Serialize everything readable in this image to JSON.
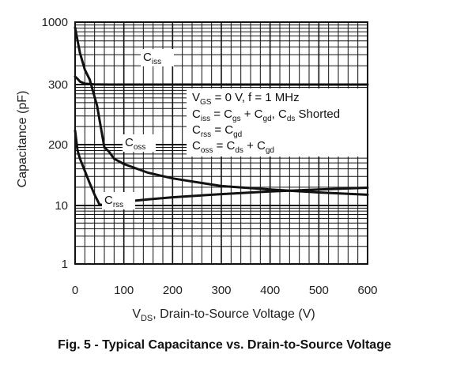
{
  "chart_data": {
    "type": "line",
    "caption": "Fig. 5 - Typical Capacitance vs. Drain-to-Source Voltage",
    "xlabel": {
      "main": "V",
      "sub": "DS",
      "rest": ", Drain-to-Source Voltage (V)"
    },
    "ylabel": "Capacitance (pF)",
    "x_ticks": [
      "0",
      "100",
      "200",
      "300",
      "400",
      "500",
      "600"
    ],
    "y_ticks": [
      "1",
      "10",
      "200",
      "300",
      "1000"
    ],
    "xlim": [
      0,
      600
    ],
    "grid": true,
    "series": [
      {
        "name": "Ciss",
        "label": {
          "main": "C",
          "sub": "iss"
        },
        "x": [
          0,
          5,
          10,
          20,
          40,
          70,
          100,
          200,
          300,
          400,
          500,
          600
        ],
        "y": [
          350,
          335,
          318,
          305,
          301,
          300,
          300,
          300,
          300,
          300,
          300,
          300
        ]
      },
      {
        "name": "Coss",
        "label": {
          "main": "C",
          "sub": "oss"
        },
        "x": [
          0,
          5,
          10,
          20,
          30,
          45,
          60,
          70,
          80,
          100,
          150,
          200,
          300,
          400,
          500,
          600
        ],
        "y": [
          900,
          700,
          550,
          400,
          330,
          260,
          175,
          140,
          100,
          77,
          50,
          38,
          26,
          22,
          19,
          17
        ]
      },
      {
        "name": "Crss",
        "label": {
          "main": "C",
          "sub": "rss"
        },
        "x": [
          0,
          5,
          10,
          20,
          30,
          40,
          50,
          55,
          100,
          150,
          200,
          300,
          400,
          500,
          600
        ],
        "y": [
          220,
          150,
          100,
          55,
          30,
          17,
          10.5,
          10.3,
          12,
          13.5,
          15,
          17.5,
          20,
          22,
          24
        ]
      }
    ],
    "legend_box": [
      [
        {
          "t": "V"
        },
        {
          "t": "GS",
          "s": 1
        },
        {
          "t": " = 0 V, f = 1 MHz"
        }
      ],
      [
        {
          "t": "C"
        },
        {
          "t": "iss",
          "s": 1
        },
        {
          "t": " = C"
        },
        {
          "t": "gs",
          "s": 1
        },
        {
          "t": " + C"
        },
        {
          "t": "gd",
          "s": 1
        },
        {
          "t": ", C"
        },
        {
          "t": "ds",
          "s": 1
        },
        {
          "t": " Shorted"
        }
      ],
      [
        {
          "t": "C"
        },
        {
          "t": "rss",
          "s": 1
        },
        {
          "t": " = C"
        },
        {
          "t": "gd",
          "s": 1
        }
      ],
      [
        {
          "t": "C"
        },
        {
          "t": "oss",
          "s": 1
        },
        {
          "t": " = C"
        },
        {
          "t": "ds",
          "s": 1
        },
        {
          "t": " + C"
        },
        {
          "t": "gd",
          "s": 1
        }
      ]
    ]
  }
}
